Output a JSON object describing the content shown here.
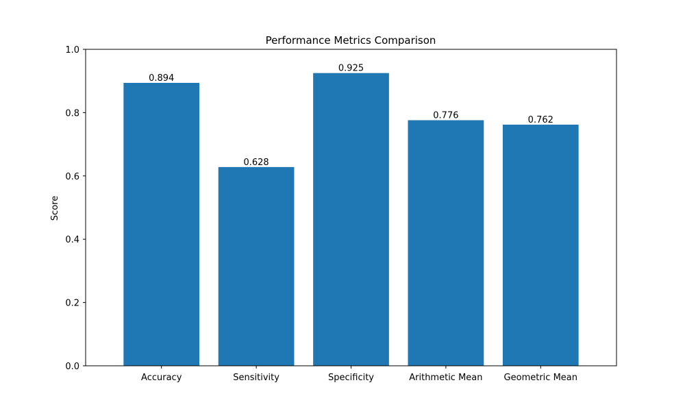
{
  "chart_data": {
    "type": "bar",
    "title": "Performance Metrics Comparison",
    "xlabel": "",
    "ylabel": "Score",
    "categories": [
      "Accuracy",
      "Sensitivity",
      "Specificity",
      "Arithmetic Mean",
      "Geometric Mean"
    ],
    "values": [
      0.894,
      0.628,
      0.925,
      0.776,
      0.762
    ],
    "value_labels": [
      "0.894",
      "0.628",
      "0.925",
      "0.776",
      "0.762"
    ],
    "ylim": [
      0,
      1.0
    ],
    "yticks": [
      0.0,
      0.2,
      0.4,
      0.6,
      0.8,
      1.0
    ],
    "ytick_labels": [
      "0.0",
      "0.2",
      "0.4",
      "0.6",
      "0.8",
      "1.0"
    ],
    "grid": false,
    "bar_color": "#1f77b4"
  }
}
